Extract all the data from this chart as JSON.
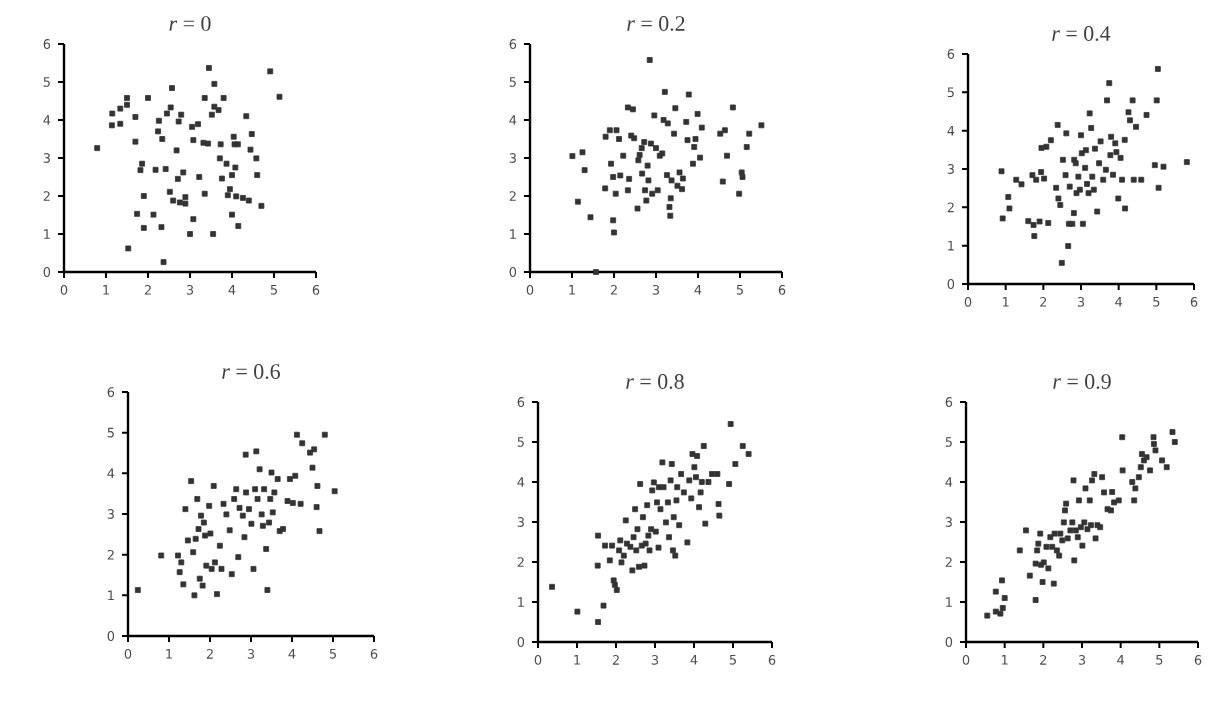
{
  "chart_data": [
    {
      "type": "scatter",
      "title": "*r* = 0",
      "color": "#333333",
      "marker": "square",
      "xlim": [
        0,
        6
      ],
      "ylim": [
        0,
        6
      ],
      "xticks": [
        0,
        1,
        2,
        3,
        4,
        5,
        6
      ],
      "yticks": [
        0,
        1,
        2,
        3,
        4,
        5,
        6
      ],
      "x": [
        0.79,
        1.15,
        1.14,
        1.34,
        1.34,
        1.5,
        1.5,
        1.7,
        1.7,
        1.74,
        1.53,
        1.82,
        1.86,
        1.9,
        1.9,
        2.0,
        2.13,
        2.18,
        2.24,
        2.26,
        2.34,
        2.32,
        2.37,
        2.42,
        2.45,
        2.54,
        2.57,
        2.52,
        2.6,
        2.68,
        2.71,
        2.73,
        2.76,
        2.79,
        2.84,
        2.89,
        2.89,
        3.0,
        3.05,
        3.08,
        3.08,
        3.19,
        3.22,
        3.32,
        3.35,
        3.35,
        3.45,
        3.43,
        3.52,
        3.55,
        3.58,
        3.58,
        3.68,
        3.71,
        3.73,
        3.76,
        3.8,
        3.87,
        3.9,
        3.95,
        4.0,
        4.0,
        4.04,
        4.06,
        4.08,
        4.1,
        4.14,
        4.15,
        4.26,
        4.34,
        4.4,
        4.44,
        4.47,
        4.58,
        4.6,
        4.7,
        4.91,
        5.13
      ],
      "values": [
        3.26,
        4.17,
        3.86,
        4.3,
        3.9,
        4.58,
        4.4,
        4.08,
        3.43,
        1.53,
        0.62,
        2.68,
        2.85,
        2.0,
        1.16,
        4.58,
        1.51,
        2.69,
        3.7,
        3.98,
        3.5,
        1.18,
        0.26,
        2.71,
        4.17,
        4.33,
        4.84,
        2.11,
        1.88,
        3.2,
        2.45,
        3.96,
        1.83,
        4.14,
        2.62,
        1.97,
        1.8,
        1.0,
        3.82,
        3.47,
        1.39,
        3.89,
        2.5,
        3.4,
        2.06,
        4.58,
        5.37,
        3.38,
        4.14,
        1.0,
        4.95,
        4.35,
        4.26,
        2.99,
        3.36,
        2.46,
        4.58,
        2.85,
        2.02,
        2.18,
        1.51,
        2.55,
        3.56,
        3.36,
        2.75,
        1.99,
        3.36,
        1.21,
        1.95,
        4.1,
        1.88,
        3.22,
        3.63,
        2.99,
        2.55,
        1.74,
        5.28,
        4.61
      ]
    },
    {
      "type": "scatter",
      "title": "*r* = 0.2",
      "color": "#333333",
      "marker": "square",
      "xlim": [
        0,
        6
      ],
      "ylim": [
        0,
        6
      ],
      "xticks": [
        0,
        1,
        2,
        3,
        4,
        5,
        6
      ],
      "yticks": [
        0,
        1,
        2,
        3,
        4,
        5,
        6
      ],
      "x": [
        1.01,
        1.14,
        1.3,
        1.25,
        1.44,
        1.57,
        1.79,
        1.8,
        1.9,
        1.93,
        1.98,
        1.98,
        2.0,
        2.04,
        2.06,
        2.12,
        2.15,
        2.22,
        2.33,
        2.33,
        2.36,
        2.41,
        2.45,
        2.48,
        2.56,
        2.58,
        2.61,
        2.66,
        2.67,
        2.72,
        2.74,
        2.77,
        2.8,
        2.82,
        2.85,
        2.88,
        2.91,
        2.96,
        3.0,
        3.04,
        3.09,
        3.15,
        3.18,
        3.21,
        3.26,
        3.28,
        3.32,
        3.34,
        3.35,
        3.37,
        3.43,
        3.46,
        3.51,
        3.56,
        3.62,
        3.64,
        3.72,
        3.75,
        3.78,
        3.88,
        3.91,
        3.94,
        3.99,
        4.05,
        4.09,
        4.53,
        4.59,
        4.64,
        4.69,
        4.83,
        4.98,
        5.04,
        5.06,
        5.16,
        5.22,
        5.51
      ],
      "values": [
        3.05,
        1.85,
        2.68,
        3.15,
        1.44,
        0.0,
        2.2,
        3.56,
        3.73,
        2.85,
        2.5,
        1.36,
        1.04,
        2.06,
        3.73,
        3.5,
        2.54,
        3.06,
        4.33,
        2.15,
        2.45,
        3.59,
        4.28,
        3.52,
        1.67,
        2.94,
        3.08,
        3.26,
        2.59,
        3.42,
        2.15,
        1.88,
        2.8,
        2.41,
        5.58,
        3.38,
        2.06,
        4.12,
        3.26,
        2.15,
        3.06,
        3.12,
        4.0,
        4.74,
        2.55,
        3.91,
        1.71,
        1.48,
        1.94,
        2.41,
        3.64,
        4.31,
        2.27,
        2.62,
        2.18,
        2.46,
        3.95,
        3.47,
        4.67,
        2.85,
        3.29,
        3.5,
        4.16,
        3.01,
        3.8,
        3.64,
        2.38,
        3.73,
        3.06,
        4.33,
        2.06,
        2.62,
        2.5,
        3.29,
        3.64,
        3.86
      ]
    },
    {
      "type": "scatter",
      "title": "*r* = 0.4",
      "color": "#333333",
      "marker": "square",
      "xlim": [
        0,
        6
      ],
      "ylim": [
        0,
        6
      ],
      "xticks": [
        0,
        1,
        2,
        3,
        4,
        5,
        6
      ],
      "yticks": [
        0,
        1,
        2,
        3,
        4,
        5,
        6
      ],
      "x": [
        0.89,
        0.92,
        1.07,
        1.1,
        1.28,
        1.42,
        1.6,
        1.71,
        1.74,
        1.76,
        1.81,
        1.9,
        1.94,
        1.95,
        2.02,
        2.08,
        2.13,
        2.2,
        2.34,
        2.38,
        2.4,
        2.45,
        2.49,
        2.52,
        2.59,
        2.61,
        2.66,
        2.68,
        2.7,
        2.77,
        2.81,
        2.82,
        2.86,
        2.88,
        2.93,
        2.97,
        3.0,
        3.02,
        3.05,
        3.11,
        3.13,
        3.16,
        3.2,
        3.23,
        3.27,
        3.3,
        3.34,
        3.37,
        3.43,
        3.48,
        3.52,
        3.59,
        3.66,
        3.69,
        3.75,
        3.78,
        3.8,
        3.85,
        3.91,
        3.94,
        3.99,
        4.05,
        4.09,
        4.16,
        4.17,
        4.26,
        4.3,
        4.37,
        4.4,
        4.46,
        4.6,
        4.74,
        4.96,
        5.01,
        5.04,
        5.06,
        5.19,
        5.81
      ],
      "values": [
        2.94,
        1.71,
        2.27,
        1.97,
        2.72,
        2.6,
        1.64,
        2.84,
        1.54,
        1.25,
        2.72,
        1.63,
        2.92,
        3.55,
        2.75,
        3.58,
        1.59,
        3.75,
        2.51,
        4.15,
        2.23,
        2.06,
        0.55,
        3.24,
        2.84,
        3.93,
        0.99,
        1.57,
        2.54,
        1.57,
        1.85,
        3.24,
        3.15,
        2.37,
        2.8,
        2.46,
        3.88,
        3.41,
        1.57,
        3.03,
        3.49,
        2.61,
        2.37,
        4.45,
        4.07,
        2.8,
        2.46,
        3.53,
        1.89,
        3.15,
        3.72,
        2.72,
        2.98,
        4.79,
        5.24,
        3.36,
        3.84,
        2.85,
        3.67,
        3.44,
        2.23,
        3.29,
        2.72,
        3.76,
        1.97,
        4.48,
        4.27,
        4.79,
        2.72,
        4.1,
        2.72,
        4.41,
        3.1,
        4.79,
        5.61,
        2.51,
        3.06,
        3.18
      ]
    },
    {
      "type": "scatter",
      "title": "*r* = 0.6",
      "color": "#333333",
      "marker": "square",
      "xlim": [
        0,
        6
      ],
      "ylim": [
        0,
        6
      ],
      "xticks": [
        0,
        1,
        2,
        3,
        4,
        5,
        6
      ],
      "yticks": [
        0,
        1,
        2,
        3,
        4,
        5,
        6
      ],
      "x": [
        0.24,
        0.81,
        1.22,
        1.26,
        1.3,
        1.35,
        1.4,
        1.46,
        1.54,
        1.59,
        1.62,
        1.65,
        1.69,
        1.72,
        1.75,
        1.78,
        1.82,
        1.85,
        1.88,
        1.91,
        1.98,
        2.01,
        2.04,
        2.09,
        2.12,
        2.17,
        2.24,
        2.28,
        2.33,
        2.4,
        2.48,
        2.53,
        2.59,
        2.64,
        2.69,
        2.72,
        2.8,
        2.84,
        2.87,
        2.88,
        2.95,
        3.01,
        3.06,
        3.1,
        3.13,
        3.16,
        3.21,
        3.26,
        3.29,
        3.32,
        3.37,
        3.4,
        3.44,
        3.47,
        3.5,
        3.53,
        3.57,
        3.65,
        3.7,
        3.78,
        3.89,
        3.95,
        4.02,
        4.08,
        4.12,
        4.21,
        4.25,
        4.44,
        4.5,
        4.54,
        4.6,
        4.62,
        4.67,
        4.8,
        5.04
      ],
      "values": [
        1.13,
        1.98,
        1.98,
        1.57,
        1.81,
        1.27,
        3.12,
        2.35,
        3.81,
        2.06,
        1.0,
        2.39,
        3.37,
        2.63,
        1.41,
        2.96,
        1.24,
        2.79,
        2.47,
        1.73,
        3.2,
        2.52,
        1.65,
        3.69,
        1.81,
        1.03,
        2.22,
        1.65,
        3.25,
        2.99,
        2.6,
        1.52,
        3.37,
        3.61,
        1.94,
        3.15,
        2.96,
        2.43,
        4.46,
        3.53,
        3.12,
        2.76,
        1.65,
        3.61,
        4.54,
        3.37,
        4.1,
        2.99,
        2.71,
        3.61,
        2.14,
        1.13,
        2.79,
        3.37,
        4.02,
        3.04,
        3.53,
        3.86,
        2.58,
        2.63,
        3.32,
        3.86,
        3.27,
        3.94,
        4.95,
        3.25,
        4.74,
        4.51,
        4.14,
        4.59,
        3.17,
        3.69,
        2.58,
        4.95,
        3.56
      ]
    },
    {
      "type": "scatter",
      "title": "*r* = 0.8",
      "color": "#333333",
      "marker": "square",
      "xlim": [
        0,
        6
      ],
      "ylim": [
        0,
        6
      ],
      "xticks": [
        0,
        1,
        2,
        3,
        4,
        5,
        6
      ],
      "yticks": [
        0,
        1,
        2,
        3,
        4,
        5,
        6
      ],
      "x": [
        0.36,
        1.01,
        1.54,
        1.53,
        1.54,
        1.68,
        1.72,
        1.84,
        1.9,
        1.94,
        1.97,
        2.02,
        2.08,
        2.11,
        2.14,
        2.2,
        2.25,
        2.28,
        2.37,
        2.42,
        2.45,
        2.49,
        2.52,
        2.55,
        2.59,
        2.62,
        2.66,
        2.69,
        2.73,
        2.76,
        2.8,
        2.83,
        2.86,
        2.9,
        2.93,
        2.97,
        3.02,
        3.05,
        3.09,
        3.1,
        3.14,
        3.19,
        3.22,
        3.28,
        3.33,
        3.36,
        3.4,
        3.43,
        3.46,
        3.48,
        3.52,
        3.55,
        3.57,
        3.62,
        3.67,
        3.74,
        3.83,
        3.88,
        3.93,
        3.96,
        4.01,
        4.05,
        4.08,
        4.13,
        4.17,
        4.2,
        4.25,
        4.29,
        4.37,
        4.46,
        4.6,
        4.63,
        4.65,
        4.9,
        4.94,
        5.06,
        5.25,
        5.4
      ],
      "values": [
        1.38,
        0.76,
        0.5,
        1.91,
        2.66,
        0.91,
        2.41,
        2.04,
        2.41,
        1.54,
        1.43,
        1.3,
        2.29,
        2.54,
        1.99,
        2.16,
        3.04,
        2.46,
        2.38,
        1.79,
        2.62,
        3.32,
        2.29,
        2.82,
        1.88,
        3.95,
        2.41,
        3.12,
        1.91,
        2.46,
        3.42,
        2.66,
        2.29,
        2.82,
        3.79,
        3.99,
        2.76,
        3.49,
        2.36,
        3.87,
        3.32,
        4.49,
        3.87,
        2.99,
        3.49,
        2.62,
        4.04,
        4.45,
        2.29,
        3.12,
        2.16,
        3.54,
        3.87,
        2.92,
        4.2,
        3.74,
        2.49,
        4.04,
        3.59,
        4.7,
        4.37,
        4.12,
        4.65,
        3.37,
        3.74,
        4.0,
        4.9,
        2.96,
        4.0,
        4.2,
        4.2,
        3.45,
        3.16,
        3.95,
        5.45,
        4.45,
        4.9,
        4.7
      ]
    },
    {
      "type": "scatter",
      "title": "*r* = 0.9",
      "color": "#333333",
      "marker": "square",
      "xlim": [
        0,
        6
      ],
      "ylim": [
        0,
        6
      ],
      "xticks": [
        0,
        1,
        2,
        3,
        4,
        5,
        6
      ],
      "yticks": [
        0,
        1,
        2,
        3,
        4,
        5,
        6
      ],
      "x": [
        0.55,
        0.77,
        0.77,
        0.89,
        0.93,
        0.95,
        1.0,
        1.39,
        1.55,
        1.65,
        1.8,
        1.8,
        1.84,
        1.87,
        1.92,
        1.94,
        1.98,
        2.01,
        2.08,
        2.13,
        2.18,
        2.23,
        2.27,
        2.29,
        2.35,
        2.41,
        2.44,
        2.49,
        2.53,
        2.56,
        2.59,
        2.63,
        2.7,
        2.75,
        2.78,
        2.8,
        2.84,
        2.89,
        2.92,
        2.97,
        3.01,
        3.06,
        3.09,
        3.14,
        3.2,
        3.23,
        3.26,
        3.32,
        3.35,
        3.4,
        3.47,
        3.52,
        3.57,
        3.66,
        3.75,
        3.78,
        3.83,
        3.95,
        4.04,
        4.05,
        4.3,
        4.35,
        4.38,
        4.47,
        4.52,
        4.55,
        4.6,
        4.67,
        4.76,
        4.85,
        4.86,
        4.9,
        5.07,
        5.19,
        5.34,
        5.4
      ],
      "values": [
        0.66,
        0.76,
        1.26,
        0.71,
        1.54,
        0.85,
        1.1,
        2.29,
        2.79,
        1.66,
        1.05,
        1.96,
        2.29,
        2.46,
        2.71,
        1.93,
        1.5,
        1.99,
        2.38,
        1.84,
        2.62,
        2.38,
        1.46,
        2.71,
        2.29,
        2.16,
        2.71,
        2.54,
        2.99,
        3.29,
        3.46,
        2.59,
        2.79,
        2.99,
        4.04,
        2.04,
        2.79,
        2.62,
        3.54,
        2.87,
        2.41,
        2.99,
        3.84,
        2.82,
        3.54,
        2.92,
        4.04,
        4.2,
        2.59,
        2.92,
        2.87,
        4.12,
        3.74,
        3.32,
        3.29,
        3.75,
        3.49,
        3.54,
        5.12,
        4.29,
        4.0,
        3.54,
        3.84,
        4.12,
        4.37,
        4.7,
        4.54,
        4.62,
        4.29,
        5.12,
        4.95,
        4.79,
        4.54,
        4.37,
        5.25,
        5.0
      ]
    }
  ]
}
